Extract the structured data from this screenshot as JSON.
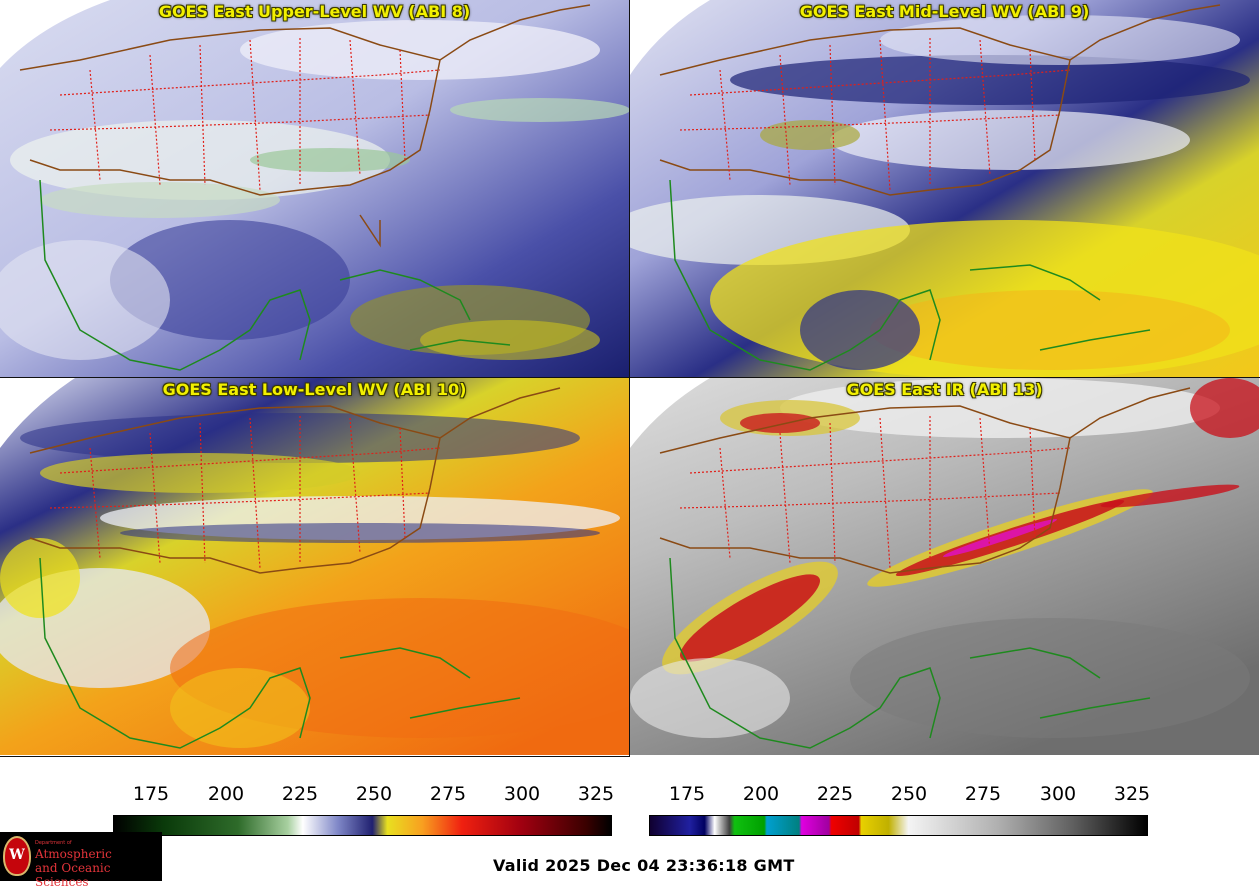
{
  "panels": [
    {
      "id": "wv8",
      "title": "GOES East Upper-Level WV (ABI 8)",
      "colormap": "wv"
    },
    {
      "id": "wv9",
      "title": "GOES East Mid-Level WV (ABI 9)",
      "colormap": "wv"
    },
    {
      "id": "wv10",
      "title": "GOES East Low-Level WV (ABI 10)",
      "colormap": "wv"
    },
    {
      "id": "ir13",
      "title": "GOES East IR (ABI 13)",
      "colormap": "ir"
    }
  ],
  "colorbars": [
    {
      "id": "wv-colorbar",
      "ticks": [
        "175",
        "200",
        "225",
        "250",
        "275",
        "300",
        "325"
      ]
    },
    {
      "id": "ir-colorbar",
      "ticks": [
        "175",
        "200",
        "225",
        "250",
        "275",
        "300",
        "325"
      ]
    }
  ],
  "valid_time": "Valid 2025 Dec 04 23:36:18 GMT",
  "logo": {
    "dept": "Department of",
    "line1": "Atmospheric",
    "line2": "and Oceanic Sciences",
    "seal_letter": "W"
  },
  "colors": {
    "state_borders": "#e0201a",
    "coastline_us": "#8a4a14",
    "coastline_intl": "#1e8a1e",
    "title_text": "#f2f000"
  }
}
